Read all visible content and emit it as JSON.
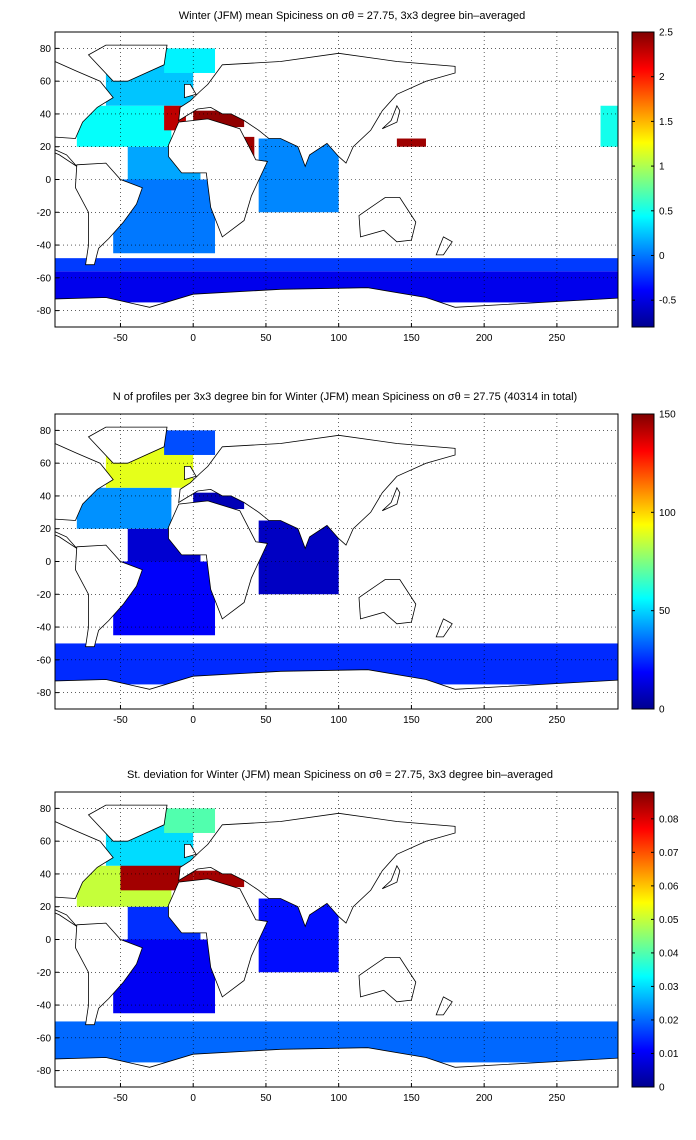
{
  "figure": {
    "panels": [
      {
        "title": "Winter (JFM) mean Spiciness on σθ = 27.75, 3x3 degree bin–averaged",
        "colorbar": {
          "min": -0.8,
          "max": 2.5,
          "ticks": [
            -0.5,
            0,
            0.5,
            1,
            1.5,
            2,
            2.5
          ]
        }
      },
      {
        "title": "N of profiles per 3x3 degree bin for Winter (JFM) mean Spiciness on σθ = 27.75 (40314 in total)",
        "colorbar": {
          "min": 0,
          "max": 150,
          "ticks": [
            0,
            50,
            100,
            150
          ]
        }
      },
      {
        "title": "St. deviation for Winter (JFM) mean Spiciness on σθ = 27.75, 3x3 degree bin–averaged",
        "colorbar": {
          "min": 0,
          "max": 0.088,
          "ticks": [
            0,
            0.01,
            0.02,
            0.03,
            0.04,
            0.05,
            0.06,
            0.07,
            0.08
          ]
        }
      }
    ]
  },
  "chart_data": [
    {
      "type": "heatmap",
      "title": "Winter (JFM) mean Spiciness on σθ = 27.75, 3x3 degree bin–averaged",
      "xlabel": "",
      "ylabel": "",
      "xlim": [
        -95,
        292
      ],
      "ylim": [
        -90,
        90
      ],
      "xticks": [
        -50,
        0,
        50,
        100,
        150,
        200,
        250
      ],
      "yticks": [
        -80,
        -60,
        -40,
        -20,
        0,
        20,
        40,
        60,
        80
      ],
      "grid": true,
      "colorbar_range": [
        -0.8,
        2.5
      ],
      "colormap": "jet",
      "regions": [
        {
          "name": "Southern Ocean band",
          "lon": [
            -95,
            292
          ],
          "lat": [
            -75,
            -56
          ],
          "value": -0.45
        },
        {
          "name": "Southern Ocean north edge",
          "lon": [
            -95,
            292
          ],
          "lat": [
            -56,
            -48
          ],
          "value": -0.2
        },
        {
          "name": "South Atlantic",
          "lon": [
            -55,
            15
          ],
          "lat": [
            -45,
            0
          ],
          "value": 0.0
        },
        {
          "name": "Tropical Atlantic",
          "lon": [
            -45,
            5
          ],
          "lat": [
            0,
            20
          ],
          "value": 0.15
        },
        {
          "name": "North Atlantic subtropical",
          "lon": [
            -80,
            -15
          ],
          "lat": [
            20,
            45
          ],
          "value": 0.45
        },
        {
          "name": "North Atlantic subpolar",
          "lon": [
            -60,
            0
          ],
          "lat": [
            45,
            70
          ],
          "value": 0.25
        },
        {
          "name": "Nordic Seas",
          "lon": [
            -20,
            15
          ],
          "lat": [
            65,
            80
          ],
          "value": 0.4
        },
        {
          "name": "Mediterranean outflow",
          "lon": [
            -20,
            -5
          ],
          "lat": [
            30,
            45
          ],
          "value": 2.3
        },
        {
          "name": "Mediterranean Sea",
          "lon": [
            0,
            35
          ],
          "lat": [
            32,
            42
          ],
          "value": 2.45
        },
        {
          "name": "Red Sea",
          "lon": [
            35,
            42
          ],
          "lat": [
            14,
            26
          ],
          "value": 2.4
        },
        {
          "name": "Indian Ocean",
          "lon": [
            45,
            100
          ],
          "lat": [
            -20,
            25
          ],
          "value": 0.05
        },
        {
          "name": "Northwest Pacific",
          "lon": [
            140,
            160
          ],
          "lat": [
            20,
            25
          ],
          "value": 2.4
        },
        {
          "name": "Eastern boundary edge",
          "lon": [
            280,
            292
          ],
          "lat": [
            20,
            45
          ],
          "value": 0.5
        }
      ]
    },
    {
      "type": "heatmap",
      "title": "N of profiles per 3x3 degree bin for Winter (JFM) mean Spiciness on σθ = 27.75 (40314 in total)",
      "xlabel": "",
      "ylabel": "",
      "xlim": [
        -95,
        292
      ],
      "ylim": [
        -90,
        90
      ],
      "xticks": [
        -50,
        0,
        50,
        100,
        150,
        200,
        250
      ],
      "yticks": [
        -80,
        -60,
        -40,
        -20,
        0,
        20,
        40,
        60,
        80
      ],
      "grid": true,
      "total_profiles": 40314,
      "colorbar_range": [
        0,
        150
      ],
      "colormap": "jet",
      "regions": [
        {
          "name": "Southern Ocean band",
          "lon": [
            -95,
            292
          ],
          "lat": [
            -75,
            -50
          ],
          "value": 25
        },
        {
          "name": "South Atlantic",
          "lon": [
            -55,
            15
          ],
          "lat": [
            -45,
            0
          ],
          "value": 18
        },
        {
          "name": "Tropical Atlantic",
          "lon": [
            -45,
            5
          ],
          "lat": [
            0,
            20
          ],
          "value": 12
        },
        {
          "name": "North Atlantic subtropical",
          "lon": [
            -80,
            -15
          ],
          "lat": [
            20,
            45
          ],
          "value": 40
        },
        {
          "name": "North Atlantic subpolar",
          "lon": [
            -60,
            0
          ],
          "lat": [
            45,
            70
          ],
          "value": 90
        },
        {
          "name": "Nordic Seas",
          "lon": [
            -20,
            15
          ],
          "lat": [
            65,
            80
          ],
          "value": 30
        },
        {
          "name": "Indian Ocean",
          "lon": [
            45,
            100
          ],
          "lat": [
            -20,
            25
          ],
          "value": 10
        },
        {
          "name": "Mediterranean",
          "lon": [
            0,
            35
          ],
          "lat": [
            32,
            42
          ],
          "value": 8
        }
      ]
    },
    {
      "type": "heatmap",
      "title": "St. deviation for Winter (JFM) mean Spiciness on σθ = 27.75, 3x3 degree bin–averaged",
      "xlabel": "",
      "ylabel": "",
      "xlim": [
        -95,
        292
      ],
      "ylim": [
        -90,
        90
      ],
      "xticks": [
        -50,
        0,
        50,
        100,
        150,
        200,
        250
      ],
      "yticks": [
        -80,
        -60,
        -40,
        -20,
        0,
        20,
        40,
        60,
        80
      ],
      "grid": true,
      "colorbar_range": [
        0,
        0.088
      ],
      "colormap": "jet",
      "regions": [
        {
          "name": "Southern Ocean band",
          "lon": [
            -95,
            292
          ],
          "lat": [
            -75,
            -50
          ],
          "value": 0.02
        },
        {
          "name": "South Atlantic",
          "lon": [
            -55,
            15
          ],
          "lat": [
            -45,
            0
          ],
          "value": 0.01
        },
        {
          "name": "Tropical Atlantic",
          "lon": [
            -45,
            5
          ],
          "lat": [
            0,
            20
          ],
          "value": 0.015
        },
        {
          "name": "North Atlantic subtropical",
          "lon": [
            -80,
            -15
          ],
          "lat": [
            20,
            45
          ],
          "value": 0.05
        },
        {
          "name": "North Atlantic core",
          "lon": [
            -50,
            0
          ],
          "lat": [
            30,
            52
          ],
          "value": 0.085
        },
        {
          "name": "North Atlantic subpolar",
          "lon": [
            -60,
            0
          ],
          "lat": [
            45,
            70
          ],
          "value": 0.03
        },
        {
          "name": "Nordic Seas",
          "lon": [
            -20,
            15
          ],
          "lat": [
            65,
            80
          ],
          "value": 0.04
        },
        {
          "name": "Indian Ocean",
          "lon": [
            45,
            100
          ],
          "lat": [
            -20,
            25
          ],
          "value": 0.012
        },
        {
          "name": "Mediterranean",
          "lon": [
            0,
            35
          ],
          "lat": [
            32,
            42
          ],
          "value": 0.085
        }
      ]
    }
  ]
}
